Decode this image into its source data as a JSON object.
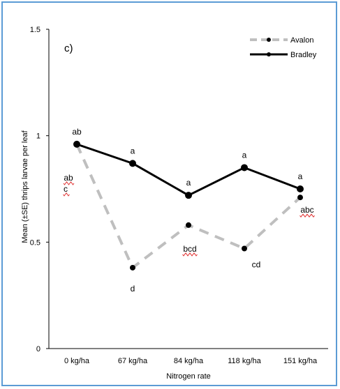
{
  "chart_data": {
    "type": "line",
    "panel_label": "c)",
    "xlabel": "Nitrogen rate",
    "ylabel": "Mean (±SE) thrips larvae per leaf",
    "categories": [
      "0 kg/ha",
      "67 kg/ha",
      "84 kg/ha",
      "118 kg/ha",
      "151 kg/ha"
    ],
    "ylim": [
      0,
      1.5
    ],
    "yticks": [
      "0",
      "0.5",
      "1",
      "1.5"
    ],
    "ytick_values": [
      0,
      0.5,
      1,
      1.5
    ],
    "grid": false,
    "legend_position": "top-right",
    "series": [
      {
        "name": "Avalon",
        "style": "dashed",
        "color": "#bfbfbf",
        "values": [
          0.96,
          0.38,
          0.58,
          0.47,
          0.71
        ],
        "labels": [
          "ab c",
          "d",
          "bcd",
          "cd",
          "abc"
        ]
      },
      {
        "name": "Bradley",
        "style": "solid",
        "color": "#000000",
        "values": [
          0.96,
          0.87,
          0.72,
          0.85,
          0.75
        ],
        "labels": [
          "ab",
          "a",
          "a",
          "a",
          "a"
        ]
      }
    ]
  }
}
